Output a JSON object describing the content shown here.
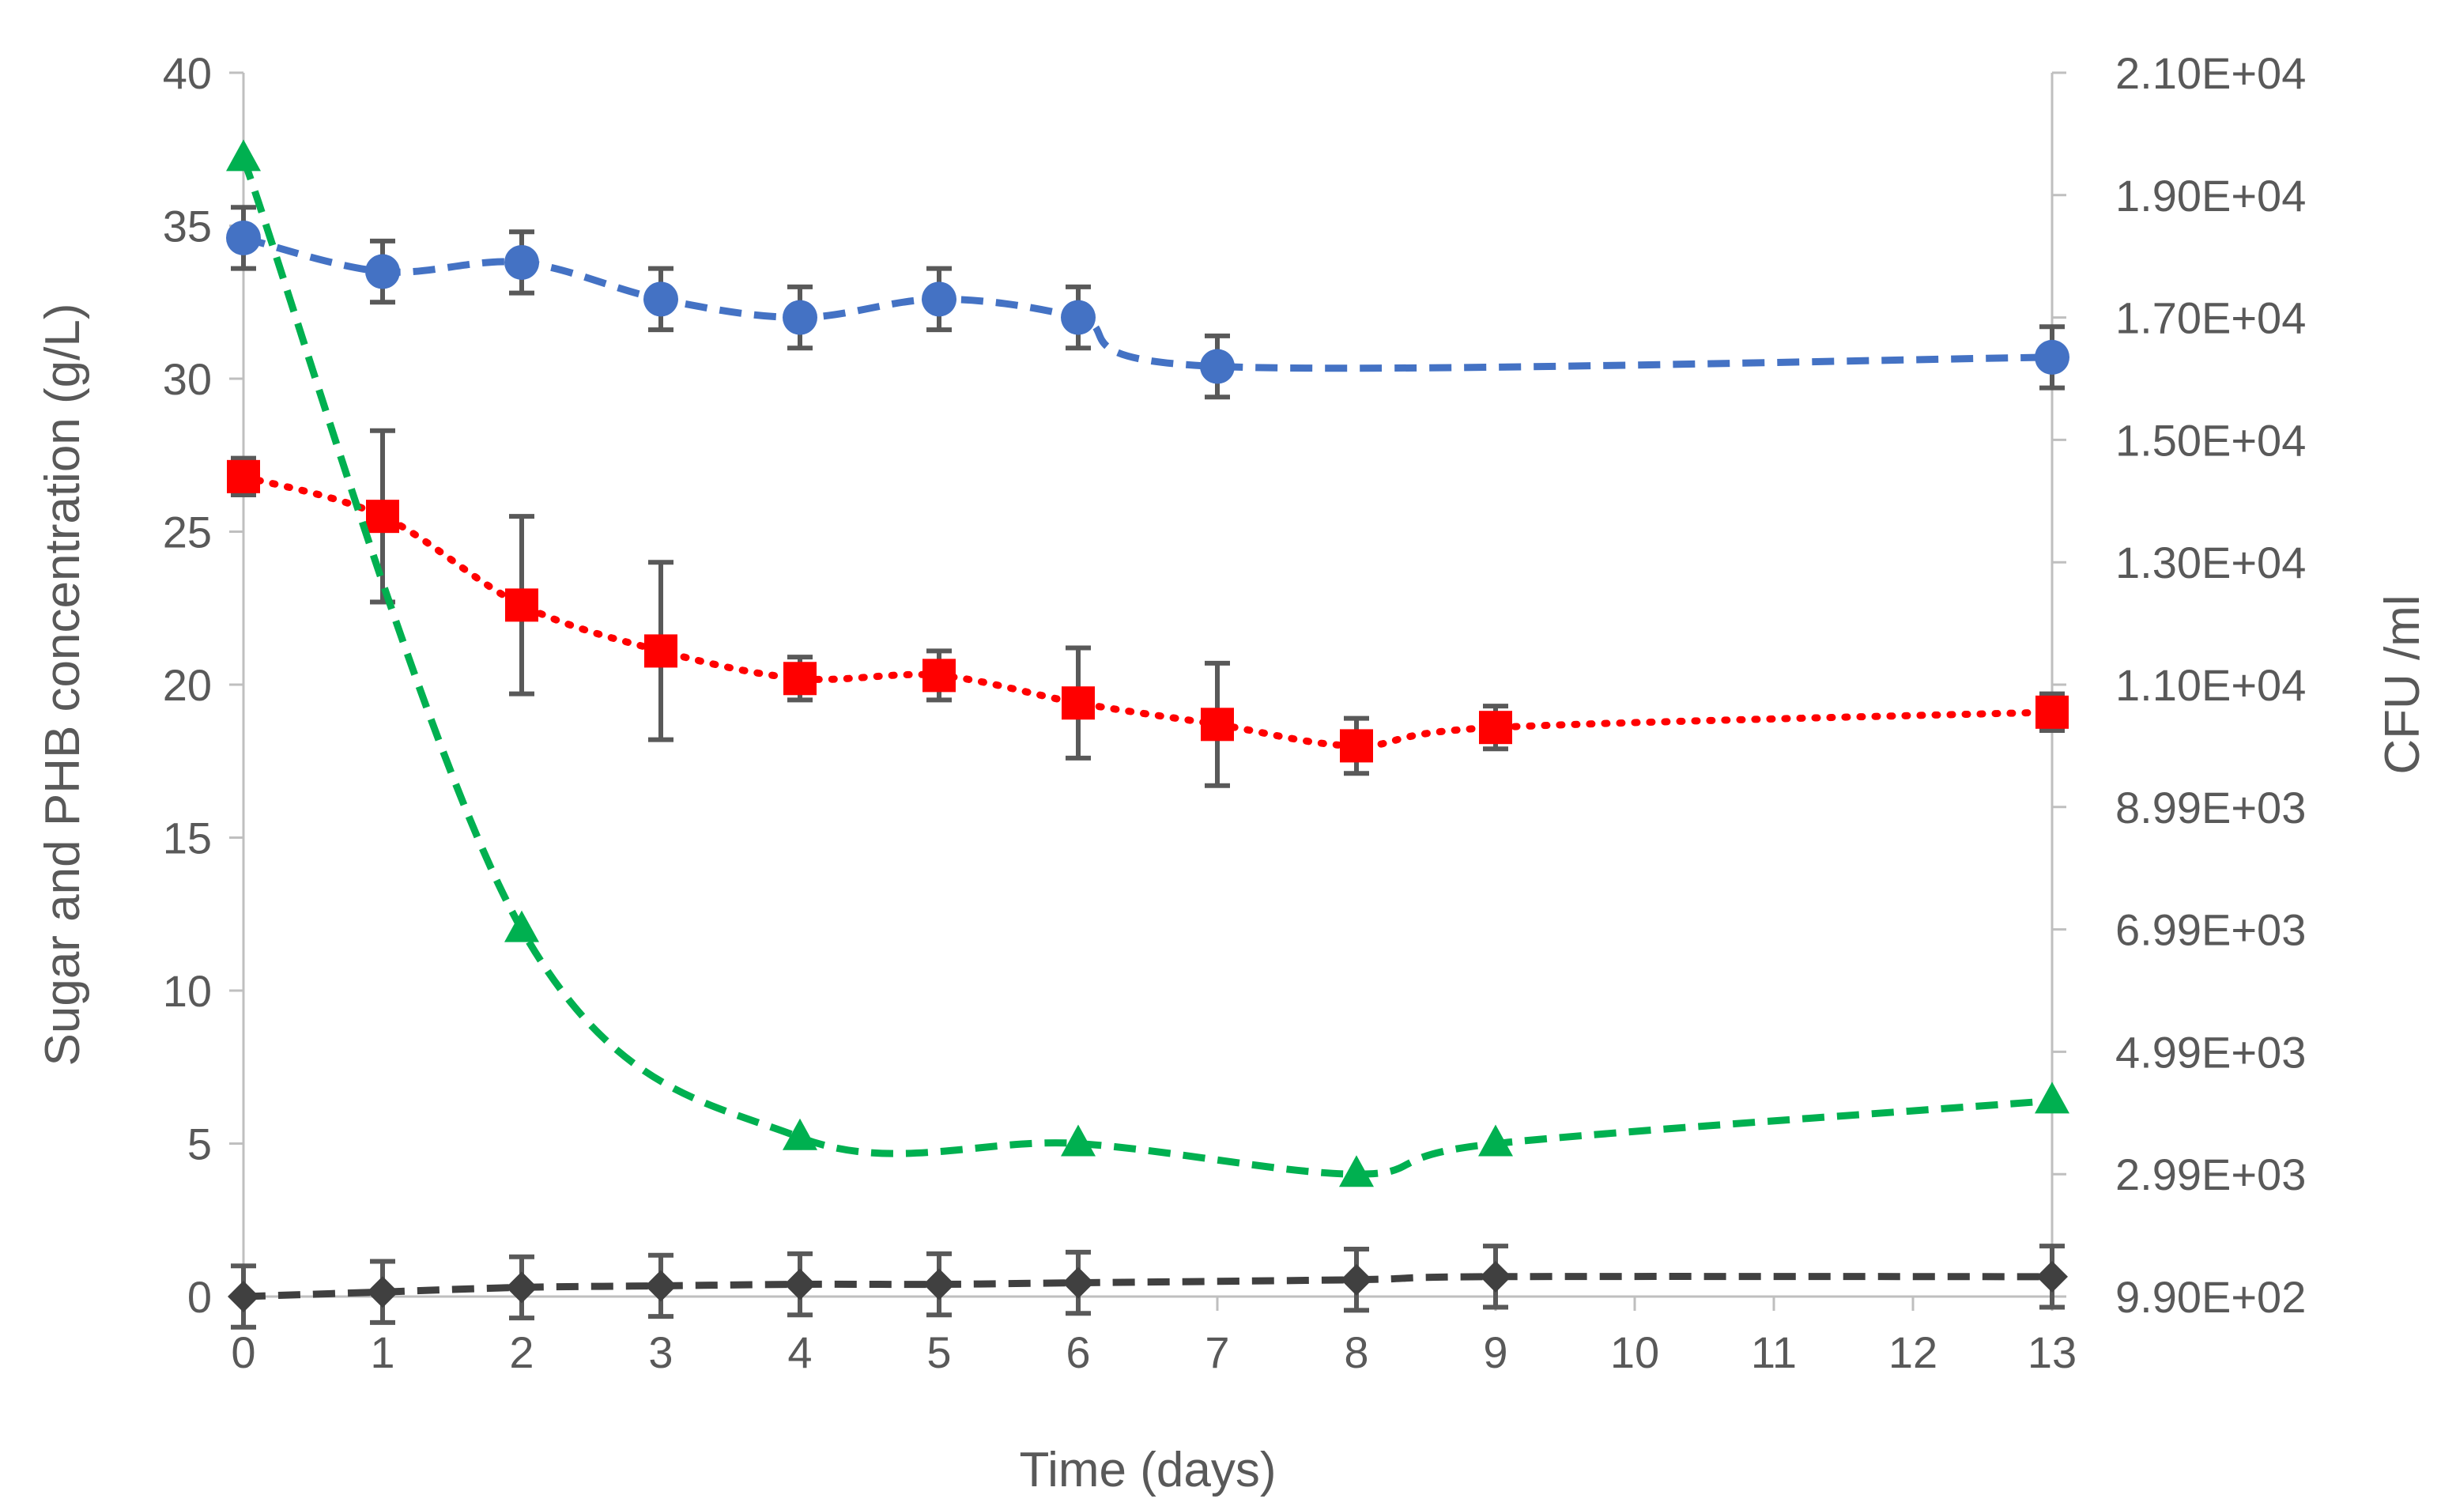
{
  "chart_data": {
    "type": "line",
    "title": "",
    "xlabel": "Time (days)",
    "ylabel": "Sugar and PHB concentration (g/L)",
    "y2label": "CFU /ml",
    "categories": [
      "0",
      "1",
      "2",
      "3",
      "4",
      "5",
      "6",
      "7",
      "8",
      "9",
      "10",
      "11",
      "12",
      "13"
    ],
    "ylim": [
      0,
      40
    ],
    "yticks": [
      "0",
      "5",
      "10",
      "15",
      "20",
      "25",
      "30",
      "35",
      "40"
    ],
    "y2ticks": [
      "9.90E+02",
      "2.99E+03",
      "4.99E+03",
      "6.99E+03",
      "8.99E+03",
      "1.10E+04",
      "1.30E+04",
      "1.50E+04",
      "1.70E+04",
      "1.90E+04",
      "2.10E+04"
    ],
    "series": [
      {
        "name": "blue circles",
        "color": "#4472C4",
        "marker": "circle",
        "line": "dashed",
        "x": [
          0,
          1,
          2,
          3,
          4,
          5,
          6,
          7,
          13
        ],
        "values": [
          34.6,
          33.5,
          33.8,
          32.6,
          32.0,
          32.6,
          32.0,
          30.4,
          30.7
        ],
        "errors": [
          1.0,
          1.0,
          1.0,
          1.0,
          1.0,
          1.0,
          1.0,
          1.0,
          1.0
        ]
      },
      {
        "name": "red squares",
        "color": "#FF0000",
        "marker": "square",
        "line": "dotted",
        "x": [
          0,
          1,
          2,
          3,
          4,
          5,
          6,
          7,
          8,
          9,
          13
        ],
        "values": [
          26.8,
          25.5,
          22.6,
          21.1,
          20.2,
          20.3,
          19.4,
          18.7,
          18.0,
          18.6,
          19.1
        ],
        "errors": [
          0.6,
          2.8,
          2.9,
          2.9,
          0.7,
          0.8,
          1.8,
          2.0,
          0.9,
          0.7,
          0.6
        ]
      },
      {
        "name": "green triangles",
        "color": "#00B050",
        "marker": "triangle",
        "line": "dashed",
        "x": [
          0,
          2,
          4,
          6,
          8,
          9,
          13
        ],
        "values": [
          37.2,
          12.0,
          5.2,
          5.0,
          4.0,
          5.0,
          6.4
        ],
        "errors": []
      },
      {
        "name": "black diamonds",
        "color": "#404040",
        "marker": "diamond",
        "line": "dashed",
        "x": [
          0,
          1,
          2,
          3,
          4,
          5,
          6,
          8,
          9,
          13
        ],
        "values": [
          0.0,
          0.15,
          0.3,
          0.35,
          0.4,
          0.4,
          0.45,
          0.55,
          0.65,
          0.65
        ],
        "errors": [
          1.0,
          1.0,
          1.0,
          1.0,
          1.0,
          1.0,
          1.0,
          1.0,
          1.0,
          1.0
        ]
      }
    ]
  }
}
